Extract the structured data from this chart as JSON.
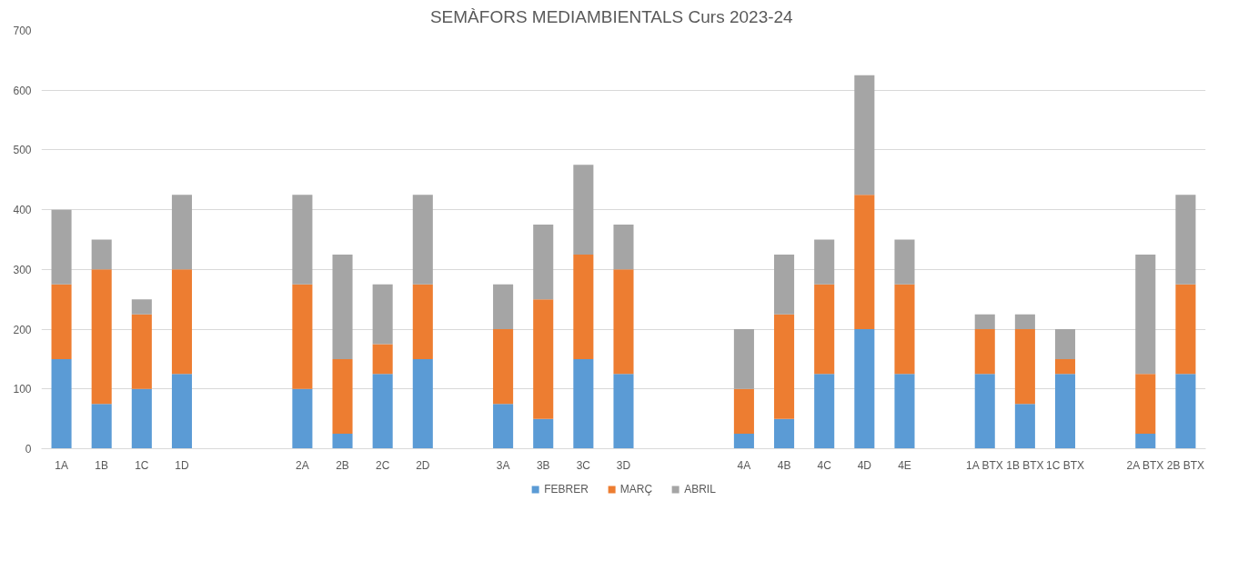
{
  "chart_data": {
    "type": "bar",
    "title": "SEMÀFORS MEDIAMBIENTALS      Curs 2023-24",
    "categories": [
      "1A",
      "1B",
      "1C",
      "1D",
      null,
      null,
      "2A",
      "2B",
      "2C",
      "2D",
      null,
      "3A",
      "3B",
      "3C",
      "3D",
      null,
      null,
      "4A",
      "4B",
      "4C",
      "4D",
      "4E",
      null,
      "1A BTX",
      "1B BTX",
      "1C BTX",
      null,
      "2A BTX",
      "2B BTX"
    ],
    "series": [
      {
        "name": "FEBRER",
        "color": "#5b9bd5",
        "values": [
          150,
          75,
          100,
          125,
          null,
          null,
          100,
          25,
          125,
          150,
          null,
          75,
          50,
          150,
          125,
          null,
          null,
          25,
          50,
          125,
          200,
          125,
          null,
          125,
          75,
          125,
          null,
          25,
          125
        ]
      },
      {
        "name": "MARÇ",
        "color": "#ed7d31",
        "values": [
          125,
          225,
          125,
          175,
          null,
          null,
          175,
          125,
          50,
          125,
          null,
          125,
          200,
          175,
          175,
          null,
          null,
          75,
          175,
          150,
          225,
          150,
          null,
          75,
          125,
          25,
          null,
          100,
          150
        ]
      },
      {
        "name": "ABRIL",
        "color": "#a5a5a5",
        "values": [
          125,
          50,
          25,
          125,
          null,
          null,
          150,
          175,
          100,
          150,
          null,
          75,
          125,
          150,
          75,
          null,
          null,
          100,
          100,
          75,
          200,
          75,
          null,
          25,
          25,
          50,
          null,
          200,
          150
        ]
      }
    ],
    "stacked": true,
    "ylim": [
      0,
      700
    ],
    "yticks": [
      0,
      100,
      200,
      300,
      400,
      500,
      600,
      700
    ],
    "grid": "y",
    "legend": "bottom"
  }
}
